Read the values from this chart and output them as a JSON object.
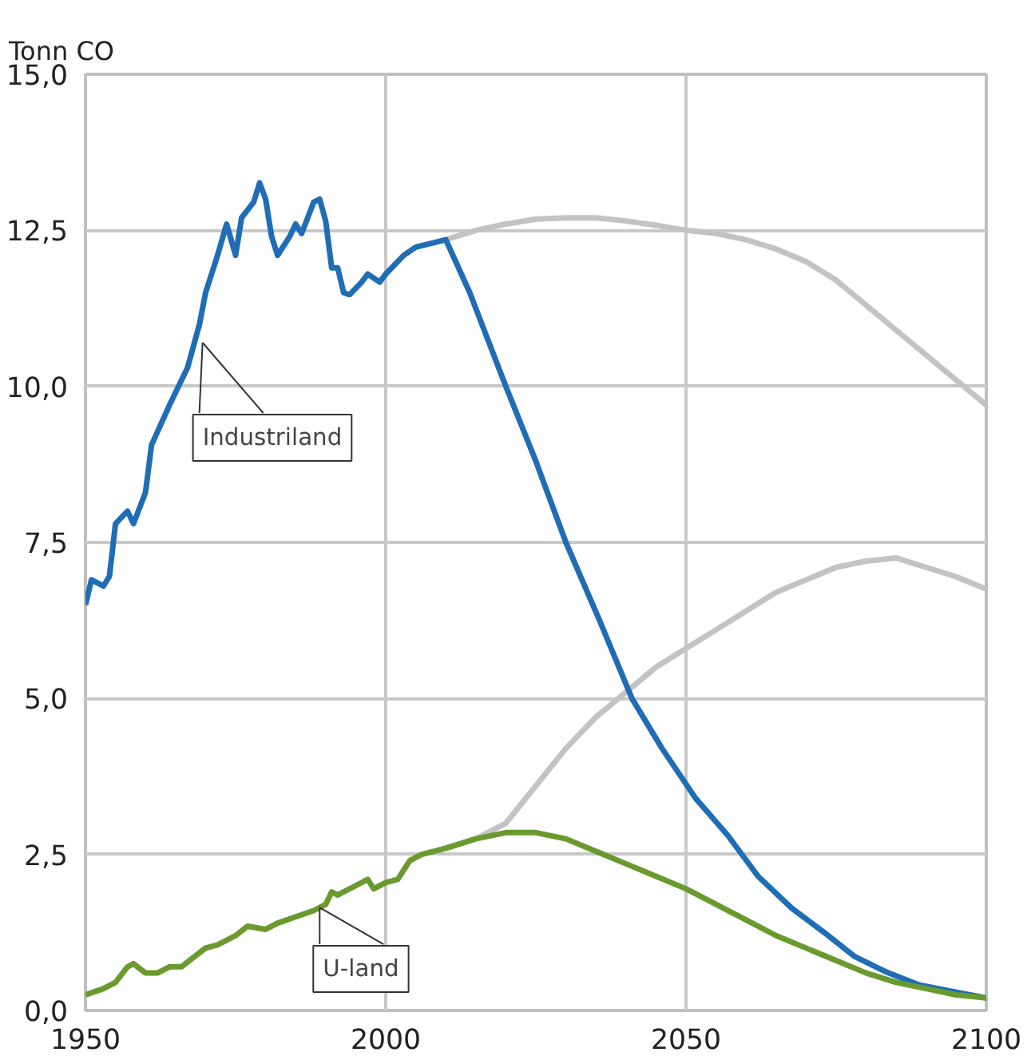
{
  "chart_data": {
    "type": "line",
    "ylabel": "Tonn CO",
    "xlim": [
      1950,
      2100
    ],
    "ylim": [
      0,
      15
    ],
    "xticks": [
      1950,
      2000,
      2050,
      2100
    ],
    "yticks": [
      {
        "value": 0,
        "label": "0,0"
      },
      {
        "value": 2.5,
        "label": "2,5"
      },
      {
        "value": 5,
        "label": "5,0"
      },
      {
        "value": 7.5,
        "label": "7,5"
      },
      {
        "value": 10,
        "label": "10,0"
      },
      {
        "value": 12.5,
        "label": "12,5"
      },
      {
        "value": 15,
        "label": "15,0"
      }
    ],
    "grid": true,
    "marker": "none",
    "line_style": "solid",
    "series": [
      {
        "color": "#c3c3c3",
        "x": [
          2010,
          2015,
          2020,
          2025,
          2030,
          2035,
          2040,
          2045,
          2050,
          2055,
          2060,
          2065,
          2070,
          2075,
          2080,
          2085,
          2090,
          2095,
          2100
        ],
        "values": [
          12.35,
          12.5,
          12.6,
          12.68,
          12.7,
          12.7,
          12.65,
          12.58,
          12.5,
          12.45,
          12.35,
          12.2,
          12.0,
          11.7,
          11.3,
          10.9,
          10.5,
          10.1,
          9.7
        ]
      },
      {
        "color": "#c3c3c3",
        "x": [
          2010,
          2015,
          2020,
          2025,
          2030,
          2035,
          2040,
          2045,
          2050,
          2055,
          2060,
          2065,
          2070,
          2075,
          2080,
          2085,
          2090,
          2095,
          2100
        ],
        "values": [
          2.6,
          2.75,
          3.0,
          3.6,
          4.2,
          4.7,
          5.1,
          5.5,
          5.8,
          6.1,
          6.4,
          6.7,
          6.9,
          7.1,
          7.2,
          7.25,
          7.1,
          6.95,
          6.75
        ]
      },
      {
        "color": "#1f6db5",
        "x": [
          1950,
          1951,
          1953,
          1954,
          1955,
          1957,
          1958,
          1960,
          1961,
          1964,
          1967,
          1969,
          1970,
          1972,
          1973.5,
          1975,
          1976,
          1978,
          1979,
          1980,
          1981,
          1982,
          1984,
          1985,
          1986,
          1988,
          1989,
          1990,
          1991,
          1992,
          1993,
          1994,
          1996,
          1997,
          1999,
          2000,
          2001,
          2003,
          2005,
          2010,
          2014,
          2020,
          2025,
          2030,
          2035.6,
          2041,
          2046,
          2051.6,
          2057,
          2062,
          2067.6,
          2073,
          2078,
          2083.5,
          2088.8,
          2094,
          2100
        ],
        "values": [
          6.5,
          6.9,
          6.8,
          6.96,
          7.8,
          8.0,
          7.8,
          8.3,
          9.06,
          9.7,
          10.3,
          11.0,
          11.5,
          12.1,
          12.6,
          12.1,
          12.7,
          12.95,
          13.26,
          13.0,
          12.4,
          12.1,
          12.4,
          12.6,
          12.45,
          12.95,
          13.0,
          12.65,
          11.9,
          11.9,
          11.5,
          11.47,
          11.67,
          11.8,
          11.67,
          11.8,
          11.9,
          12.1,
          12.23,
          12.35,
          11.5,
          10.0,
          8.8,
          7.5,
          6.25,
          5.0,
          4.2,
          3.4,
          2.8,
          2.15,
          1.64,
          1.25,
          0.87,
          0.61,
          0.41,
          0.31,
          0.2
        ]
      },
      {
        "color": "#6a9a2e",
        "x": [
          1950,
          1953,
          1955,
          1957,
          1958,
          1960,
          1962,
          1964,
          1966,
          1968,
          1970,
          1972,
          1975,
          1977,
          1980,
          1982,
          1985,
          1988,
          1990,
          1991,
          1992,
          1995,
          1997,
          1998,
          2000,
          2002,
          2004,
          2006,
          2010,
          2015,
          2020,
          2025,
          2030,
          2035,
          2040,
          2045,
          2050,
          2055,
          2060,
          2065,
          2070,
          2075,
          2080,
          2085,
          2090,
          2095,
          2100
        ],
        "values": [
          0.25,
          0.35,
          0.45,
          0.7,
          0.75,
          0.6,
          0.6,
          0.7,
          0.7,
          0.85,
          1.0,
          1.05,
          1.2,
          1.35,
          1.3,
          1.4,
          1.5,
          1.6,
          1.7,
          1.9,
          1.85,
          2.0,
          2.1,
          1.95,
          2.05,
          2.1,
          2.4,
          2.5,
          2.6,
          2.75,
          2.85,
          2.85,
          2.75,
          2.55,
          2.35,
          2.15,
          1.95,
          1.7,
          1.45,
          1.2,
          1.0,
          0.8,
          0.6,
          0.45,
          0.35,
          0.25,
          0.2
        ]
      }
    ],
    "annotations": [
      {
        "text": "Industriland",
        "x": 1969.5,
        "y": 10.7
      },
      {
        "text": "U-land",
        "x": 1989,
        "y": 1.65
      }
    ]
  }
}
